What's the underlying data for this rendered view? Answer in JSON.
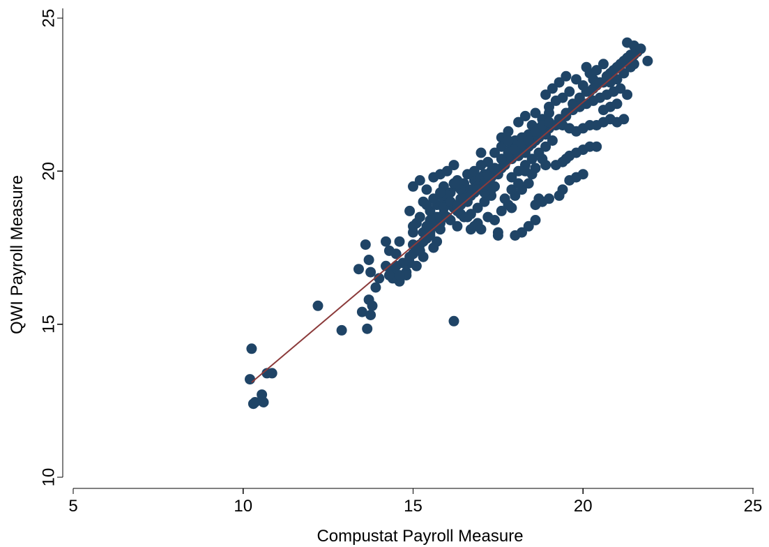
{
  "chart_data": {
    "type": "scatter",
    "xlabel": "Compustat Payroll Measure",
    "ylabel": "QWI Payroll Measure",
    "xlim": [
      5,
      25
    ],
    "ylim": [
      10,
      25
    ],
    "xticks": [
      5,
      10,
      15,
      20,
      25
    ],
    "yticks": [
      10,
      15,
      20,
      25
    ],
    "grid": false,
    "colors": {
      "points": "#1f4466",
      "fit_line": "#8b3a3a"
    },
    "fit_line": {
      "x": [
        10.25,
        21.7
      ],
      "y": [
        13.1,
        23.85
      ]
    },
    "series": [
      {
        "type": "scatter",
        "points": [
          [
            10.2,
            13.2
          ],
          [
            10.25,
            14.2
          ],
          [
            10.3,
            12.4
          ],
          [
            10.35,
            12.45
          ],
          [
            10.55,
            12.7
          ],
          [
            10.6,
            12.45
          ],
          [
            10.7,
            13.4
          ],
          [
            10.85,
            13.4
          ],
          [
            12.2,
            15.6
          ],
          [
            12.9,
            14.8
          ],
          [
            13.5,
            15.4
          ],
          [
            13.65,
            14.85
          ],
          [
            13.75,
            15.3
          ],
          [
            13.7,
            15.8
          ],
          [
            13.8,
            15.6
          ],
          [
            16.2,
            15.1
          ],
          [
            13.4,
            16.8
          ],
          [
            13.6,
            17.6
          ],
          [
            13.75,
            16.7
          ],
          [
            13.9,
            16.2
          ],
          [
            14.0,
            16.5
          ],
          [
            13.7,
            17.1
          ],
          [
            14.2,
            17.7
          ],
          [
            14.3,
            17.4
          ],
          [
            14.5,
            17.3
          ],
          [
            14.6,
            17.7
          ],
          [
            14.4,
            16.8
          ],
          [
            14.2,
            16.9
          ],
          [
            14.9,
            17.0
          ],
          [
            15.0,
            17.3
          ],
          [
            15.2,
            17.6
          ],
          [
            15.4,
            17.8
          ],
          [
            14.8,
            16.7
          ],
          [
            15.1,
            16.9
          ],
          [
            15.3,
            17.2
          ],
          [
            14.6,
            16.4
          ],
          [
            14.8,
            16.6
          ],
          [
            15.5,
            18.0
          ],
          [
            15.0,
            18.0
          ],
          [
            15.1,
            18.3
          ],
          [
            14.9,
            18.7
          ],
          [
            15.0,
            19.5
          ],
          [
            15.2,
            19.7
          ],
          [
            15.4,
            19.4
          ],
          [
            15.6,
            19.8
          ],
          [
            15.8,
            19.9
          ],
          [
            16.0,
            20.0
          ],
          [
            16.2,
            20.2
          ],
          [
            16.3,
            19.7
          ],
          [
            15.9,
            19.5
          ],
          [
            15.3,
            19.0
          ],
          [
            15.5,
            18.7
          ],
          [
            15.7,
            18.9
          ],
          [
            15.9,
            18.6
          ],
          [
            16.1,
            18.4
          ],
          [
            16.3,
            18.2
          ],
          [
            15.8,
            18.3
          ],
          [
            15.6,
            18.2
          ],
          [
            15.7,
            18.5
          ],
          [
            15.9,
            19.1
          ],
          [
            16.1,
            19.3
          ],
          [
            16.3,
            19.5
          ],
          [
            16.5,
            19.6
          ],
          [
            16.4,
            18.9
          ],
          [
            16.6,
            19.0
          ],
          [
            16.8,
            19.3
          ],
          [
            17.0,
            19.5
          ],
          [
            17.2,
            19.7
          ],
          [
            16.5,
            18.5
          ],
          [
            16.7,
            18.6
          ],
          [
            16.9,
            18.8
          ],
          [
            17.1,
            19.0
          ],
          [
            17.3,
            19.2
          ],
          [
            16.2,
            18.8
          ],
          [
            16.0,
            18.9
          ],
          [
            17.4,
            19.5
          ],
          [
            17.5,
            19.9
          ],
          [
            17.6,
            20.1
          ],
          [
            17.2,
            20.3
          ],
          [
            17.0,
            20.6
          ],
          [
            17.3,
            20.0
          ],
          [
            17.7,
            20.3
          ],
          [
            17.8,
            20.5
          ],
          [
            17.9,
            20.8
          ],
          [
            17.6,
            21.1
          ],
          [
            17.8,
            21.3
          ],
          [
            18.0,
            21.0
          ],
          [
            18.2,
            20.7
          ],
          [
            18.4,
            21.2
          ],
          [
            18.1,
            21.6
          ],
          [
            18.3,
            21.8
          ],
          [
            18.6,
            21.9
          ],
          [
            18.5,
            21.5
          ],
          [
            18.8,
            21.7
          ],
          [
            19.0,
            22.1
          ],
          [
            19.2,
            22.3
          ],
          [
            18.9,
            22.5
          ],
          [
            19.1,
            22.7
          ],
          [
            19.4,
            22.4
          ],
          [
            19.6,
            22.6
          ],
          [
            19.3,
            22.9
          ],
          [
            19.5,
            23.1
          ],
          [
            19.8,
            23.0
          ],
          [
            20.0,
            22.8
          ],
          [
            20.2,
            23.2
          ],
          [
            20.4,
            23.3
          ],
          [
            20.6,
            23.5
          ],
          [
            20.1,
            23.4
          ],
          [
            20.3,
            23.0
          ],
          [
            20.8,
            23.2
          ],
          [
            21.0,
            23.4
          ],
          [
            21.2,
            23.6
          ],
          [
            21.3,
            24.2
          ],
          [
            21.5,
            24.1
          ],
          [
            21.4,
            23.8
          ],
          [
            21.6,
            23.9
          ],
          [
            21.7,
            24.0
          ],
          [
            21.9,
            23.6
          ],
          [
            18.0,
            19.2
          ],
          [
            18.2,
            19.4
          ],
          [
            18.4,
            19.6
          ],
          [
            17.9,
            19.8
          ],
          [
            18.1,
            20.0
          ],
          [
            18.3,
            20.2
          ],
          [
            18.5,
            20.4
          ],
          [
            18.7,
            20.6
          ],
          [
            18.9,
            20.8
          ],
          [
            19.1,
            21.0
          ],
          [
            17.6,
            18.7
          ],
          [
            17.8,
            18.9
          ],
          [
            17.4,
            18.4
          ],
          [
            17.5,
            18.0
          ],
          [
            17.2,
            18.5
          ],
          [
            16.9,
            18.3
          ],
          [
            16.7,
            18.1
          ],
          [
            17.5,
            17.9
          ],
          [
            16.6,
            18.5
          ],
          [
            17.9,
            18.8
          ],
          [
            18.6,
            18.9
          ],
          [
            18.8,
            19.0
          ],
          [
            19.0,
            19.1
          ],
          [
            19.3,
            19.2
          ],
          [
            18.7,
            19.1
          ],
          [
            19.4,
            19.4
          ],
          [
            19.6,
            19.7
          ],
          [
            19.8,
            19.8
          ],
          [
            20.0,
            19.9
          ],
          [
            18.6,
            18.4
          ],
          [
            18.4,
            18.2
          ],
          [
            18.2,
            18.0
          ],
          [
            18.0,
            17.9
          ],
          [
            19.2,
            20.2
          ],
          [
            19.4,
            20.3
          ],
          [
            19.6,
            20.5
          ],
          [
            19.8,
            20.6
          ],
          [
            20.0,
            20.7
          ],
          [
            20.2,
            20.8
          ],
          [
            20.4,
            20.8
          ],
          [
            19.5,
            20.4
          ],
          [
            19.3,
            21.6
          ],
          [
            19.5,
            21.8
          ],
          [
            19.7,
            22.0
          ],
          [
            19.9,
            22.1
          ],
          [
            20.1,
            22.2
          ],
          [
            20.3,
            22.3
          ],
          [
            20.5,
            22.4
          ],
          [
            20.7,
            22.5
          ],
          [
            20.9,
            22.6
          ],
          [
            21.1,
            22.7
          ],
          [
            21.3,
            22.5
          ],
          [
            20.6,
            22.0
          ],
          [
            20.8,
            22.1
          ],
          [
            21.0,
            22.2
          ],
          [
            19.0,
            21.4
          ],
          [
            19.2,
            21.5
          ],
          [
            19.4,
            21.5
          ],
          [
            19.6,
            21.4
          ],
          [
            19.8,
            21.3
          ],
          [
            20.0,
            21.4
          ],
          [
            20.2,
            21.5
          ],
          [
            20.4,
            21.5
          ],
          [
            20.6,
            21.6
          ],
          [
            20.8,
            21.7
          ],
          [
            21.0,
            21.6
          ],
          [
            21.2,
            21.7
          ],
          [
            20.2,
            22.6
          ],
          [
            20.4,
            22.8
          ],
          [
            20.6,
            22.9
          ],
          [
            20.8,
            22.9
          ],
          [
            21.0,
            23.0
          ],
          [
            21.2,
            23.2
          ],
          [
            21.4,
            23.4
          ],
          [
            21.5,
            23.5
          ],
          [
            17.1,
            19.9
          ],
          [
            16.8,
            19.7
          ],
          [
            16.6,
            19.9
          ],
          [
            16.4,
            19.4
          ],
          [
            16.2,
            19.6
          ],
          [
            16.0,
            19.2
          ],
          [
            15.8,
            19.3
          ],
          [
            15.6,
            19.1
          ],
          [
            15.4,
            18.9
          ],
          [
            15.2,
            18.5
          ],
          [
            15.0,
            18.2
          ],
          [
            15.3,
            18.0
          ],
          [
            15.5,
            17.9
          ],
          [
            15.7,
            17.7
          ],
          [
            15.1,
            17.5
          ],
          [
            14.9,
            17.2
          ],
          [
            15.6,
            17.5
          ],
          [
            16.4,
            18.6
          ],
          [
            16.8,
            18.2
          ],
          [
            17.0,
            18.1
          ],
          [
            17.7,
            19.1
          ],
          [
            17.9,
            19.4
          ],
          [
            18.1,
            19.6
          ],
          [
            17.3,
            19.4
          ],
          [
            17.1,
            19.3
          ],
          [
            18.3,
            20.0
          ],
          [
            18.6,
            20.1
          ],
          [
            18.8,
            20.4
          ],
          [
            18.5,
            19.9
          ],
          [
            18.9,
            20.2
          ],
          [
            17.0,
            20.2
          ],
          [
            16.8,
            20.0
          ],
          [
            17.4,
            20.6
          ],
          [
            17.6,
            20.8
          ],
          [
            17.8,
            21.0
          ],
          [
            18.4,
            20.8
          ],
          [
            18.6,
            21.0
          ],
          [
            18.2,
            21.1
          ],
          [
            18.7,
            21.4
          ],
          [
            19.0,
            21.9
          ],
          [
            16.4,
            19.1
          ],
          [
            16.5,
            19.3
          ],
          [
            16.7,
            19.4
          ],
          [
            16.9,
            19.6
          ],
          [
            17.0,
            19.8
          ],
          [
            15.9,
            18.8
          ],
          [
            16.1,
            19.0
          ],
          [
            16.3,
            18.7
          ],
          [
            16.0,
            18.5
          ],
          [
            15.8,
            18.1
          ],
          [
            15.5,
            18.4
          ],
          [
            15.4,
            18.2
          ],
          [
            15.3,
            17.7
          ],
          [
            15.2,
            17.4
          ],
          [
            15.0,
            17.6
          ],
          [
            14.7,
            17.0
          ],
          [
            14.5,
            16.9
          ],
          [
            14.4,
            16.5
          ],
          [
            14.6,
            16.6
          ],
          [
            14.3,
            16.6
          ],
          [
            16.6,
            19.2
          ],
          [
            16.9,
            19.5
          ],
          [
            17.1,
            19.6
          ],
          [
            17.3,
            19.8
          ],
          [
            17.5,
            20.0
          ],
          [
            17.7,
            20.2
          ],
          [
            17.9,
            20.4
          ],
          [
            18.1,
            20.5
          ],
          [
            18.3,
            20.6
          ],
          [
            18.5,
            20.9
          ],
          [
            18.7,
            21.1
          ],
          [
            18.9,
            21.2
          ],
          [
            19.1,
            21.5
          ],
          [
            19.3,
            21.7
          ],
          [
            19.5,
            21.9
          ],
          [
            19.7,
            22.2
          ],
          [
            19.9,
            22.4
          ],
          [
            20.1,
            22.6
          ],
          [
            20.3,
            22.7
          ],
          [
            20.5,
            22.9
          ],
          [
            20.7,
            23.1
          ],
          [
            20.9,
            23.3
          ],
          [
            21.1,
            23.5
          ],
          [
            21.3,
            23.7
          ],
          [
            21.5,
            23.8
          ],
          [
            16.3,
            18.9
          ],
          [
            16.5,
            19.1
          ],
          [
            16.7,
            19.2
          ],
          [
            16.9,
            19.4
          ],
          [
            17.1,
            19.5
          ],
          [
            17.2,
            19.9
          ],
          [
            17.4,
            20.1
          ],
          [
            17.6,
            20.4
          ],
          [
            17.8,
            20.6
          ],
          [
            18.0,
            20.7
          ],
          [
            18.2,
            20.9
          ],
          [
            18.4,
            21.0
          ],
          [
            18.6,
            21.3
          ],
          [
            18.8,
            21.5
          ],
          [
            19.0,
            21.6
          ]
        ]
      }
    ]
  }
}
